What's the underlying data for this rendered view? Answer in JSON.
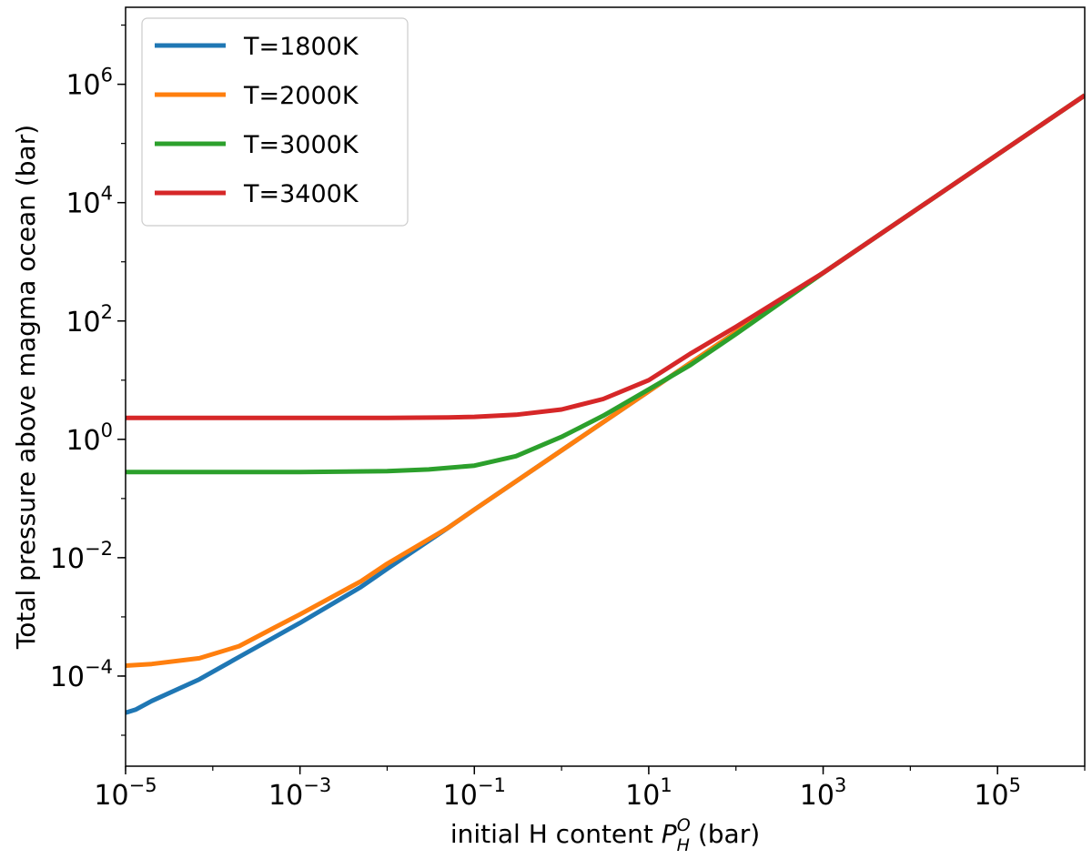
{
  "chart_data": {
    "type": "line",
    "xscale": "log",
    "yscale": "log",
    "xlim": [
      1e-05,
      1000000.0
    ],
    "ylim": [
      3e-06,
      20000000.0
    ],
    "xticks": [
      1e-05,
      0.001,
      0.1,
      10.0,
      1000.0,
      100000.0
    ],
    "xtick_labels": [
      {
        "base": "10",
        "exp": "−5"
      },
      {
        "base": "10",
        "exp": "−3"
      },
      {
        "base": "10",
        "exp": "−1"
      },
      {
        "base": "10",
        "exp": "1"
      },
      {
        "base": "10",
        "exp": "3"
      },
      {
        "base": "10",
        "exp": "5"
      }
    ],
    "yticks": [
      0.0001,
      0.01,
      1.0,
      100.0,
      10000.0,
      1000000.0
    ],
    "ytick_labels": [
      {
        "base": "10",
        "exp": "−4"
      },
      {
        "base": "10",
        "exp": "−2"
      },
      {
        "base": "10",
        "exp": "0"
      },
      {
        "base": "10",
        "exp": "2"
      },
      {
        "base": "10",
        "exp": "4"
      },
      {
        "base": "10",
        "exp": "6"
      }
    ],
    "xlabel": {
      "prefix": "initial H content ",
      "symbol": "P",
      "sub": "H",
      "sup": "O",
      "suffix": " (bar)"
    },
    "ylabel": "Total pressure above magma ocean (bar)",
    "grid": false,
    "legend_position": "top-left",
    "series": [
      {
        "name": "T=1800K",
        "color": "#1f77b4",
        "x": [
          1e-05,
          1.3e-05,
          2e-05,
          7e-05,
          0.0002,
          0.001,
          0.005,
          0.01,
          0.05,
          0.1,
          1,
          10,
          100,
          1000,
          10000.0,
          100000.0,
          1000000.0
        ],
        "y": [
          2.4e-05,
          2.7e-05,
          3.8e-05,
          8.8e-05,
          0.00021,
          0.00079,
          0.0032,
          0.0065,
          0.032,
          0.065,
          0.65,
          6.5,
          65,
          650,
          6500,
          65000,
          650000
        ]
      },
      {
        "name": "T=2000K",
        "color": "#ff7f0e",
        "x": [
          1e-05,
          2e-05,
          7e-05,
          0.0002,
          0.0005,
          0.001,
          0.005,
          0.01,
          0.05,
          0.1,
          1,
          10,
          100,
          1000,
          10000.0,
          100000.0,
          1000000.0
        ],
        "y": [
          0.00015,
          0.00016,
          0.0002,
          0.00032,
          0.00065,
          0.0011,
          0.004,
          0.0079,
          0.032,
          0.065,
          0.65,
          6.5,
          65,
          650,
          6500,
          65000,
          650000
        ]
      },
      {
        "name": "T=3000K",
        "color": "#2ca02c",
        "x": [
          1e-05,
          0.0001,
          0.001,
          0.01,
          0.03,
          0.1,
          0.3,
          1,
          3,
          10,
          30,
          100,
          1000,
          10000.0,
          100000.0,
          1000000.0
        ],
        "y": [
          0.28,
          0.28,
          0.28,
          0.29,
          0.31,
          0.36,
          0.52,
          1.1,
          2.5,
          7,
          18,
          60,
          650,
          6500,
          65000,
          650000
        ]
      },
      {
        "name": "T=3400K",
        "color": "#d62728",
        "x": [
          1e-05,
          0.001,
          0.01,
          0.05,
          0.1,
          0.3,
          1,
          3,
          10,
          30,
          100,
          1000,
          10000.0,
          100000.0,
          1000000.0
        ],
        "y": [
          2.3,
          2.3,
          2.3,
          2.35,
          2.4,
          2.6,
          3.2,
          4.8,
          10,
          28,
          80,
          650,
          6500,
          65000,
          650000
        ]
      }
    ]
  }
}
